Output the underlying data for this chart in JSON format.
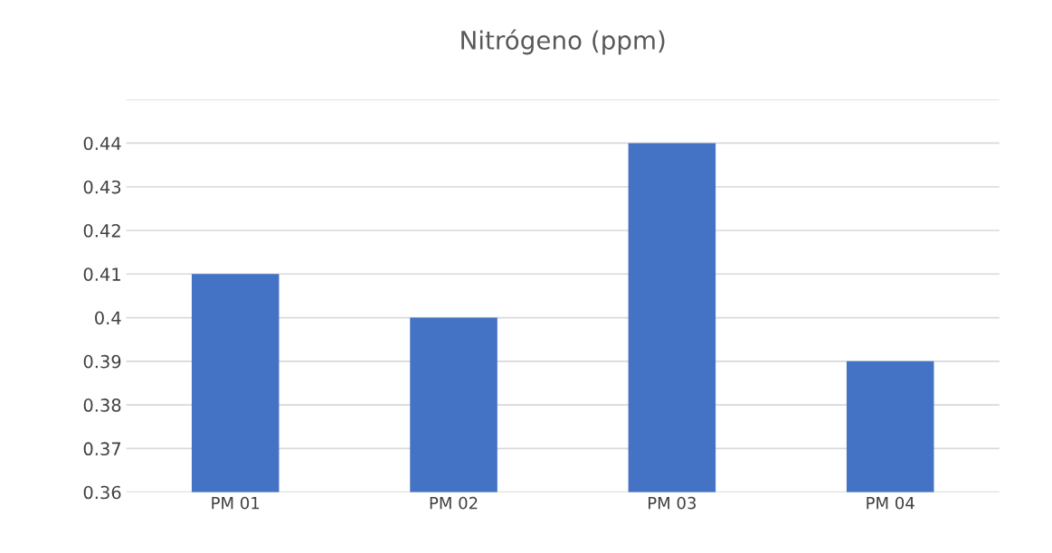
{
  "chart_data": {
    "type": "bar",
    "title": "Nitrógeno (ppm)",
    "categories": [
      "PM 01",
      "PM 02",
      "PM 03",
      "PM 04"
    ],
    "values": [
      0.41,
      0.4,
      0.44,
      0.39
    ],
    "color": "#4472c4",
    "ylim": [
      0.36,
      0.45
    ],
    "yticks": [
      0.36,
      0.37,
      0.38,
      0.39,
      0.4,
      0.41,
      0.42,
      0.43,
      0.44,
      {
        "value": 0.45,
        "label": null
      }
    ],
    "grid": "y"
  }
}
